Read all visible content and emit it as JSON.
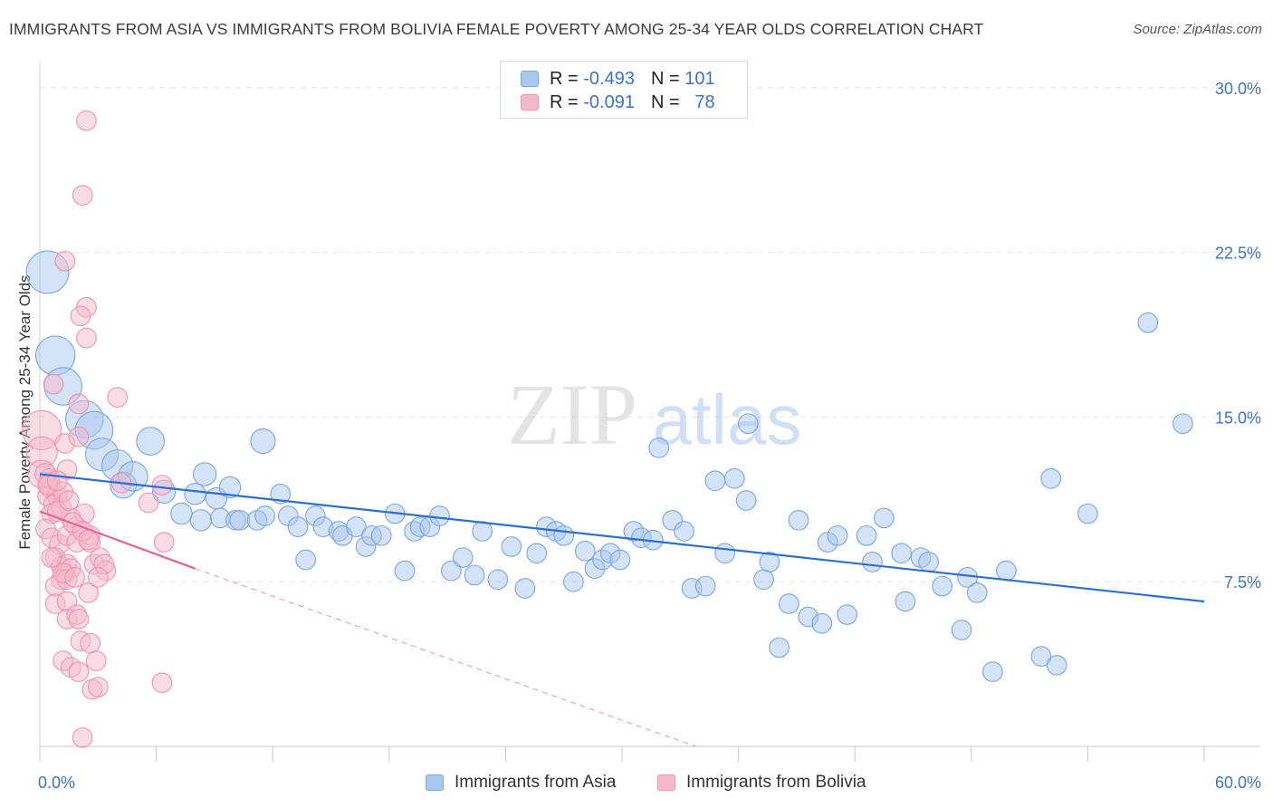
{
  "title": "IMMIGRANTS FROM ASIA VS IMMIGRANTS FROM BOLIVIA FEMALE POVERTY AMONG 25-34 YEAR OLDS CORRELATION CHART",
  "source": "Source: ZipAtlas.com",
  "watermark": {
    "zip": "ZIP",
    "atlas": "atlas"
  },
  "legend": {
    "asia": {
      "r_label": "R =",
      "r_value": "-0.493",
      "n_label": "N =",
      "n_value": "101"
    },
    "bolivia": {
      "r_label": "R =",
      "r_value": "-0.091",
      "n_label": "N =",
      "n_value": "78"
    }
  },
  "colors": {
    "asia_fill": "#a9c8ef",
    "asia_stroke": "#7aa7de",
    "asia_line": "#2b6fd1",
    "bolivia_fill": "#f6b9cc",
    "bolivia_stroke": "#ee93b0",
    "bolivia_line": "#e8638d",
    "tick_label": "#3a73c9"
  },
  "chart_data": {
    "type": "scatter",
    "title": "IMMIGRANTS FROM ASIA VS IMMIGRANTS FROM BOLIVIA FEMALE POVERTY AMONG 25-34 YEAR OLDS CORRELATION CHART",
    "xlabel": "",
    "ylabel": "Female Poverty Among 25-34 Year Olds",
    "xlim": [
      0,
      60
    ],
    "ylim": [
      0,
      30.9
    ],
    "x_tick_labels": [
      "0.0%",
      "60.0%"
    ],
    "y_ticks": [
      7.5,
      15.0,
      22.5,
      30.0
    ],
    "y_tick_labels": [
      "7.5%",
      "15.0%",
      "22.5%",
      "30.0%"
    ],
    "grid": true,
    "legend_position": "top-center",
    "series": [
      {
        "name": "Immigrants from Asia",
        "r": -0.493,
        "n": 101,
        "trend": {
          "x": [
            0,
            60
          ],
          "y": [
            12.4,
            6.6
          ]
        },
        "points": [
          [
            0.4,
            21.6,
            2.6
          ],
          [
            0.8,
            17.8,
            2.4
          ],
          [
            1.2,
            16.4,
            2.3
          ],
          [
            2.3,
            14.9,
            2.3
          ],
          [
            2.8,
            14.4,
            2.3
          ],
          [
            3.2,
            13.3,
            2.0
          ],
          [
            4.0,
            12.8,
            1.9
          ],
          [
            4.3,
            11.9,
            1.6
          ],
          [
            4.8,
            12.3,
            1.8
          ],
          [
            5.7,
            13.9,
            1.7
          ],
          [
            6.4,
            11.6,
            1.4
          ],
          [
            7.3,
            10.6,
            1.3
          ],
          [
            8.0,
            11.5,
            1.3
          ],
          [
            8.5,
            12.4,
            1.4
          ],
          [
            8.3,
            10.3,
            1.3
          ],
          [
            9.1,
            11.3,
            1.3
          ],
          [
            9.3,
            10.4,
            1.2
          ],
          [
            9.8,
            11.8,
            1.3
          ],
          [
            10.1,
            10.3,
            1.2
          ],
          [
            10.3,
            10.3,
            1.2
          ],
          [
            11.2,
            10.3,
            1.2
          ],
          [
            11.5,
            13.9,
            1.5
          ],
          [
            11.6,
            10.5,
            1.2
          ],
          [
            12.4,
            11.5,
            1.2
          ],
          [
            12.8,
            10.5,
            1.2
          ],
          [
            13.3,
            10.0,
            1.2
          ],
          [
            13.7,
            8.5,
            1.2
          ],
          [
            14.2,
            10.5,
            1.2
          ],
          [
            14.6,
            10.0,
            1.2
          ],
          [
            15.4,
            9.8,
            1.2
          ],
          [
            15.6,
            9.6,
            1.2
          ],
          [
            16.3,
            10.0,
            1.2
          ],
          [
            16.8,
            9.1,
            1.2
          ],
          [
            17.1,
            9.6,
            1.2
          ],
          [
            17.6,
            9.6,
            1.2
          ],
          [
            18.3,
            10.6,
            1.2
          ],
          [
            18.8,
            8.0,
            1.2
          ],
          [
            19.3,
            9.8,
            1.2
          ],
          [
            19.6,
            10.0,
            1.2
          ],
          [
            20.1,
            10.0,
            1.2
          ],
          [
            20.6,
            10.5,
            1.2
          ],
          [
            21.2,
            8.0,
            1.2
          ],
          [
            21.8,
            8.6,
            1.2
          ],
          [
            22.4,
            7.8,
            1.2
          ],
          [
            22.8,
            9.8,
            1.2
          ],
          [
            23.6,
            7.6,
            1.2
          ],
          [
            24.3,
            9.1,
            1.2
          ],
          [
            25.0,
            7.2,
            1.2
          ],
          [
            25.6,
            8.8,
            1.2
          ],
          [
            26.1,
            10.0,
            1.2
          ],
          [
            26.6,
            9.8,
            1.2
          ],
          [
            27.0,
            9.6,
            1.2
          ],
          [
            27.5,
            7.5,
            1.2
          ],
          [
            28.1,
            8.9,
            1.2
          ],
          [
            28.6,
            8.1,
            1.2
          ],
          [
            29.0,
            8.5,
            1.2
          ],
          [
            29.4,
            8.8,
            1.2
          ],
          [
            29.9,
            8.5,
            1.2
          ],
          [
            30.6,
            9.8,
            1.2
          ],
          [
            31.0,
            9.5,
            1.2
          ],
          [
            31.6,
            9.4,
            1.2
          ],
          [
            31.9,
            13.6,
            1.2
          ],
          [
            32.6,
            10.3,
            1.2
          ],
          [
            33.2,
            9.8,
            1.2
          ],
          [
            33.6,
            7.2,
            1.2
          ],
          [
            34.3,
            7.3,
            1.2
          ],
          [
            34.8,
            12.1,
            1.2
          ],
          [
            35.3,
            8.8,
            1.2
          ],
          [
            35.8,
            12.2,
            1.2
          ],
          [
            36.4,
            11.2,
            1.2
          ],
          [
            36.5,
            14.7,
            1.2
          ],
          [
            37.3,
            7.6,
            1.2
          ],
          [
            37.6,
            8.4,
            1.2
          ],
          [
            38.1,
            4.5,
            1.2
          ],
          [
            38.6,
            6.5,
            1.2
          ],
          [
            39.1,
            10.3,
            1.2
          ],
          [
            39.6,
            5.9,
            1.2
          ],
          [
            40.3,
            5.6,
            1.2
          ],
          [
            40.6,
            9.3,
            1.2
          ],
          [
            41.1,
            9.6,
            1.2
          ],
          [
            41.6,
            6.0,
            1.2
          ],
          [
            42.6,
            9.6,
            1.2
          ],
          [
            42.9,
            8.4,
            1.2
          ],
          [
            43.5,
            10.4,
            1.2
          ],
          [
            44.4,
            8.8,
            1.2
          ],
          [
            44.6,
            6.6,
            1.2
          ],
          [
            45.4,
            8.6,
            1.2
          ],
          [
            45.8,
            8.4,
            1.2
          ],
          [
            46.5,
            7.3,
            1.2
          ],
          [
            47.5,
            5.3,
            1.2
          ],
          [
            47.8,
            7.7,
            1.2
          ],
          [
            48.3,
            7.0,
            1.2
          ],
          [
            49.1,
            3.4,
            1.2
          ],
          [
            49.8,
            8.0,
            1.2
          ],
          [
            51.6,
            4.1,
            1.2
          ],
          [
            52.1,
            12.2,
            1.2
          ],
          [
            52.4,
            3.7,
            1.2
          ],
          [
            54.0,
            10.6,
            1.2
          ],
          [
            57.1,
            19.3,
            1.2
          ],
          [
            58.9,
            14.7,
            1.2
          ]
        ]
      },
      {
        "name": "Immigrants from Bolivia",
        "r": -0.091,
        "n": 78,
        "trend": {
          "x": [
            0,
            8.0
          ],
          "y": [
            10.7,
            8.1
          ]
        },
        "trend_dashed_extension": {
          "x": [
            8.0,
            33.8
          ],
          "y": [
            8.1,
            0.0
          ]
        },
        "points": [
          [
            0.1,
            14.4,
            2.4
          ],
          [
            0.1,
            13.4,
            1.9
          ],
          [
            0.1,
            12.4,
            1.7
          ],
          [
            0.3,
            12.4,
            1.3
          ],
          [
            0.5,
            12.0,
            1.3
          ],
          [
            0.6,
            11.7,
            1.2
          ],
          [
            0.4,
            11.4,
            1.2
          ],
          [
            0.9,
            11.4,
            1.2
          ],
          [
            0.7,
            11.0,
            1.2
          ],
          [
            0.6,
            10.6,
            1.2
          ],
          [
            1.1,
            10.9,
            1.2
          ],
          [
            1.2,
            11.6,
            1.2
          ],
          [
            0.7,
            16.5,
            1.2
          ],
          [
            1.3,
            13.8,
            1.2
          ],
          [
            1.4,
            12.6,
            1.2
          ],
          [
            1.6,
            10.4,
            1.2
          ],
          [
            1.9,
            10.0,
            1.2
          ],
          [
            0.3,
            9.9,
            1.2
          ],
          [
            0.6,
            9.5,
            1.2
          ],
          [
            1.0,
            9.2,
            1.2
          ],
          [
            1.4,
            9.6,
            1.2
          ],
          [
            1.9,
            9.3,
            1.2
          ],
          [
            2.6,
            9.6,
            1.2
          ],
          [
            0.8,
            8.6,
            1.2
          ],
          [
            1.1,
            8.2,
            1.2
          ],
          [
            1.3,
            7.9,
            1.2
          ],
          [
            1.4,
            8.3,
            1.2
          ],
          [
            1.6,
            8.1,
            1.2
          ],
          [
            1.1,
            7.6,
            1.2
          ],
          [
            0.8,
            7.3,
            1.2
          ],
          [
            1.4,
            7.6,
            1.2
          ],
          [
            2.0,
            15.6,
            1.2
          ],
          [
            2.0,
            14.1,
            1.2
          ],
          [
            2.3,
            10.6,
            1.2
          ],
          [
            2.6,
            9.3,
            1.2
          ],
          [
            2.8,
            8.3,
            1.2
          ],
          [
            3.1,
            8.6,
            1.2
          ],
          [
            3.4,
            8.0,
            1.2
          ],
          [
            2.5,
            7.0,
            1.2
          ],
          [
            0.8,
            6.5,
            1.2
          ],
          [
            1.4,
            6.6,
            1.2
          ],
          [
            1.4,
            5.8,
            1.2
          ],
          [
            1.9,
            6.0,
            1.2
          ],
          [
            2.0,
            5.8,
            1.2
          ],
          [
            2.1,
            4.8,
            1.2
          ],
          [
            2.6,
            4.7,
            1.2
          ],
          [
            1.2,
            3.9,
            1.2
          ],
          [
            1.6,
            3.6,
            1.2
          ],
          [
            2.0,
            3.4,
            1.2
          ],
          [
            2.9,
            3.9,
            1.2
          ],
          [
            2.7,
            2.6,
            1.2
          ],
          [
            3.0,
            2.7,
            1.2
          ],
          [
            2.2,
            0.4,
            1.2
          ],
          [
            2.4,
            28.5,
            1.2
          ],
          [
            2.2,
            25.1,
            1.2
          ],
          [
            1.3,
            22.1,
            1.2
          ],
          [
            2.4,
            20.0,
            1.2
          ],
          [
            2.1,
            19.6,
            1.2
          ],
          [
            2.4,
            18.6,
            1.2
          ],
          [
            4.0,
            15.9,
            1.2
          ],
          [
            4.2,
            12.0,
            1.2
          ],
          [
            5.6,
            11.1,
            1.2
          ],
          [
            6.3,
            11.9,
            1.2
          ],
          [
            6.4,
            9.3,
            1.2
          ],
          [
            6.3,
            2.9,
            1.2
          ],
          [
            0.5,
            12.2,
            1.2
          ],
          [
            0.9,
            10.7,
            1.2
          ],
          [
            1.7,
            10.2,
            1.2
          ],
          [
            2.2,
            9.8,
            1.2
          ],
          [
            3.3,
            8.3,
            1.2
          ],
          [
            0.6,
            8.6,
            1.2
          ],
          [
            1.2,
            7.9,
            1.2
          ],
          [
            1.8,
            7.7,
            1.2
          ],
          [
            2.5,
            9.4,
            1.2
          ],
          [
            0.4,
            11.9,
            1.2
          ],
          [
            0.9,
            12.1,
            1.2
          ],
          [
            1.5,
            11.2,
            1.2
          ],
          [
            3.0,
            7.7,
            1.2
          ]
        ]
      }
    ]
  }
}
